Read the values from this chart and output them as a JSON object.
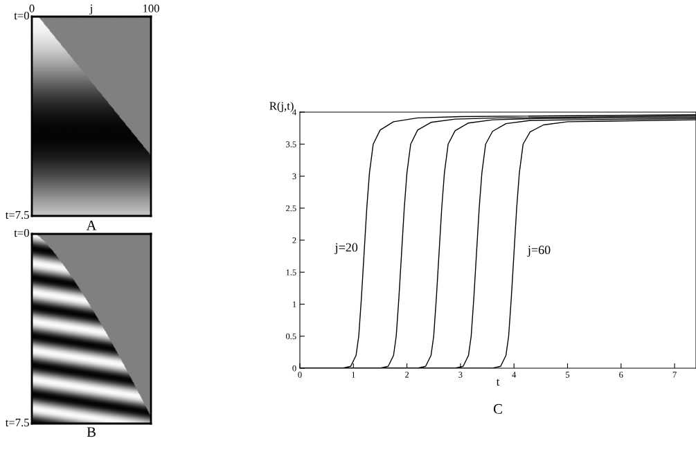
{
  "chart_data": [
    {
      "type": "other",
      "title": "A",
      "annotations": [
        "0",
        "j",
        "100",
        "t=0",
        "t=7.5"
      ]
    },
    {
      "type": "other",
      "title": "B",
      "annotations": [
        "t=0",
        "t=7.5"
      ]
    },
    {
      "type": "line",
      "title": "C",
      "xlabel": "t",
      "ylabel": "R(j,t)",
      "xlim": [
        0,
        7.4
      ],
      "xticks": [
        0,
        1,
        2,
        3,
        4,
        5,
        6,
        7
      ],
      "ylim": [
        0,
        4
      ],
      "yticks": [
        0,
        0.5,
        1,
        1.5,
        2,
        2.5,
        3,
        3.5,
        4
      ],
      "grid": false,
      "marker": "none",
      "line_style": "solid",
      "series": [
        {
          "color": "#000000",
          "x": [
            0,
            0.8,
            0.95,
            1.05,
            1.1,
            1.15,
            1.2,
            1.25,
            1.3,
            1.37,
            1.5,
            1.75,
            2.2,
            3,
            7.4
          ],
          "values": [
            0,
            0,
            0.03,
            0.2,
            0.5,
            1.1,
            1.8,
            2.5,
            3.05,
            3.5,
            3.72,
            3.85,
            3.91,
            3.93,
            3.96
          ]
        },
        {
          "color": "#000000",
          "x": [
            0,
            1.5,
            1.65,
            1.75,
            1.8,
            1.85,
            1.9,
            1.95,
            2,
            2.07,
            2.2,
            2.45,
            2.9,
            3.7,
            7.4
          ],
          "values": [
            0,
            0,
            0.03,
            0.2,
            0.5,
            1.1,
            1.8,
            2.5,
            3.05,
            3.5,
            3.72,
            3.84,
            3.89,
            3.91,
            3.94
          ]
        },
        {
          "color": "#000000",
          "x": [
            0,
            2.2,
            2.35,
            2.45,
            2.5,
            2.55,
            2.6,
            2.65,
            2.7,
            2.77,
            2.9,
            3.15,
            3.6,
            4.4,
            7.4
          ],
          "values": [
            0,
            0,
            0.03,
            0.2,
            0.5,
            1.1,
            1.8,
            2.5,
            3.05,
            3.5,
            3.71,
            3.83,
            3.88,
            3.9,
            3.92
          ]
        },
        {
          "color": "#000000",
          "x": [
            0,
            2.9,
            3.05,
            3.15,
            3.2,
            3.25,
            3.3,
            3.35,
            3.4,
            3.47,
            3.6,
            3.85,
            4.3,
            5.1,
            7.4
          ],
          "values": [
            0,
            0,
            0.03,
            0.2,
            0.5,
            1.1,
            1.8,
            2.5,
            3.05,
            3.5,
            3.7,
            3.82,
            3.87,
            3.88,
            3.9
          ]
        },
        {
          "color": "#000000",
          "x": [
            0,
            3.6,
            3.75,
            3.85,
            3.9,
            3.95,
            4,
            4.05,
            4.1,
            4.17,
            4.3,
            4.55,
            5,
            5.8,
            7.4
          ],
          "values": [
            0,
            0,
            0.03,
            0.2,
            0.5,
            1.1,
            1.8,
            2.5,
            3.05,
            3.5,
            3.69,
            3.8,
            3.85,
            3.86,
            3.88
          ]
        }
      ],
      "annotations": [
        "j=20",
        "j=60"
      ]
    }
  ]
}
